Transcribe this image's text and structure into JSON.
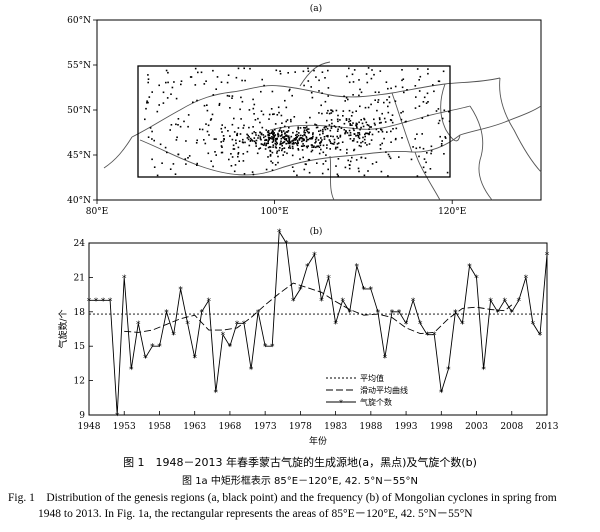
{
  "chart_data": [
    {
      "type": "map",
      "panel_label": "(a)",
      "lon_ticks": [
        "80°E",
        "100°E",
        "120°E"
      ],
      "lat_ticks": [
        "40°N",
        "45°N",
        "50°N",
        "55°N",
        "60°N"
      ],
      "xlim": [
        80,
        130
      ],
      "ylim": [
        40,
        60
      ],
      "region_box": {
        "lon": [
          85,
          120
        ],
        "lat": [
          42.5,
          55
        ]
      },
      "genesis_points_note": "black points"
    },
    {
      "type": "line",
      "panel_label": "(b)",
      "xlabel": "年份",
      "ylabel": "气旋数/个",
      "xlim": [
        1948,
        2013
      ],
      "ylim": [
        9,
        24
      ],
      "x_ticks": [
        1948,
        1953,
        1958,
        1963,
        1968,
        1973,
        1978,
        1983,
        1988,
        1993,
        1998,
        2003,
        2008,
        2013
      ],
      "y_ticks": [
        9,
        12,
        15,
        18,
        21,
        24
      ],
      "legend": [
        "平均值",
        "滑动平均曲线",
        "气旋个数"
      ],
      "legend_position": "bottom-left",
      "mean": 17.8,
      "x": [
        1948,
        1949,
        1950,
        1951,
        1952,
        1953,
        1954,
        1955,
        1956,
        1957,
        1958,
        1959,
        1960,
        1961,
        1962,
        1963,
        1964,
        1965,
        1966,
        1967,
        1968,
        1969,
        1970,
        1971,
        1972,
        1973,
        1974,
        1975,
        1976,
        1977,
        1978,
        1979,
        1980,
        1981,
        1982,
        1983,
        1984,
        1985,
        1986,
        1987,
        1988,
        1989,
        1990,
        1991,
        1992,
        1993,
        1994,
        1995,
        1996,
        1997,
        1998,
        1999,
        2000,
        2001,
        2002,
        2003,
        2004,
        2005,
        2006,
        2007,
        2008,
        2009,
        2010,
        2011,
        2012,
        2013
      ],
      "series": [
        {
          "name": "气旋个数",
          "values": [
            19,
            19,
            19,
            19,
            9,
            21,
            13,
            17,
            14,
            15,
            15,
            18,
            16,
            20,
            17,
            14,
            18,
            19,
            11,
            16,
            15,
            17,
            17,
            13,
            18,
            15,
            15,
            25,
            24,
            19,
            20,
            22,
            23,
            19,
            21,
            17,
            19,
            18,
            22,
            20,
            20,
            18,
            14,
            18,
            18,
            17,
            19,
            17,
            16,
            16,
            11,
            13,
            18,
            17,
            22,
            21,
            13,
            19,
            18,
            19,
            18,
            19,
            21,
            17,
            16,
            23
          ]
        },
        {
          "name": "滑动平均曲线",
          "x": [
            1953,
            1955,
            1957,
            1959,
            1961,
            1963,
            1965,
            1967,
            1969,
            1971,
            1973,
            1975,
            1977,
            1979,
            1981,
            1983,
            1985,
            1987,
            1989,
            1991,
            1993,
            1995,
            1997,
            1999,
            2001,
            2003,
            2005,
            2007,
            2008
          ],
          "values": [
            16.3,
            16.2,
            16.4,
            16.9,
            17.4,
            17.7,
            16.4,
            16.4,
            16.6,
            17.5,
            18.6,
            19.6,
            20.5,
            20.1,
            19.7,
            18.9,
            18.2,
            17.7,
            17.8,
            17.5,
            16.6,
            16.1,
            16.2,
            17.4,
            18.3,
            18.4,
            18.2,
            18.1,
            18.6
          ]
        }
      ]
    }
  ],
  "captions": {
    "cn_title": "图 1　1948－2013 年春季蒙古气旋的生成源地(a，黑点)及气旋个数(b)",
    "cn_sub": "图 1a 中矩形框表示 85°E－120°E, 42. 5°N－55°N",
    "en_line1": "Fig. 1　Distribution of the genesis regions (a, black point) and the frequency (b) of Mongolian cyclones in spring from",
    "en_line2": "1948 to 2013. In Fig. 1a, the rectangular represents the areas of 85°E－120°E, 42. 5°N－55°N"
  }
}
